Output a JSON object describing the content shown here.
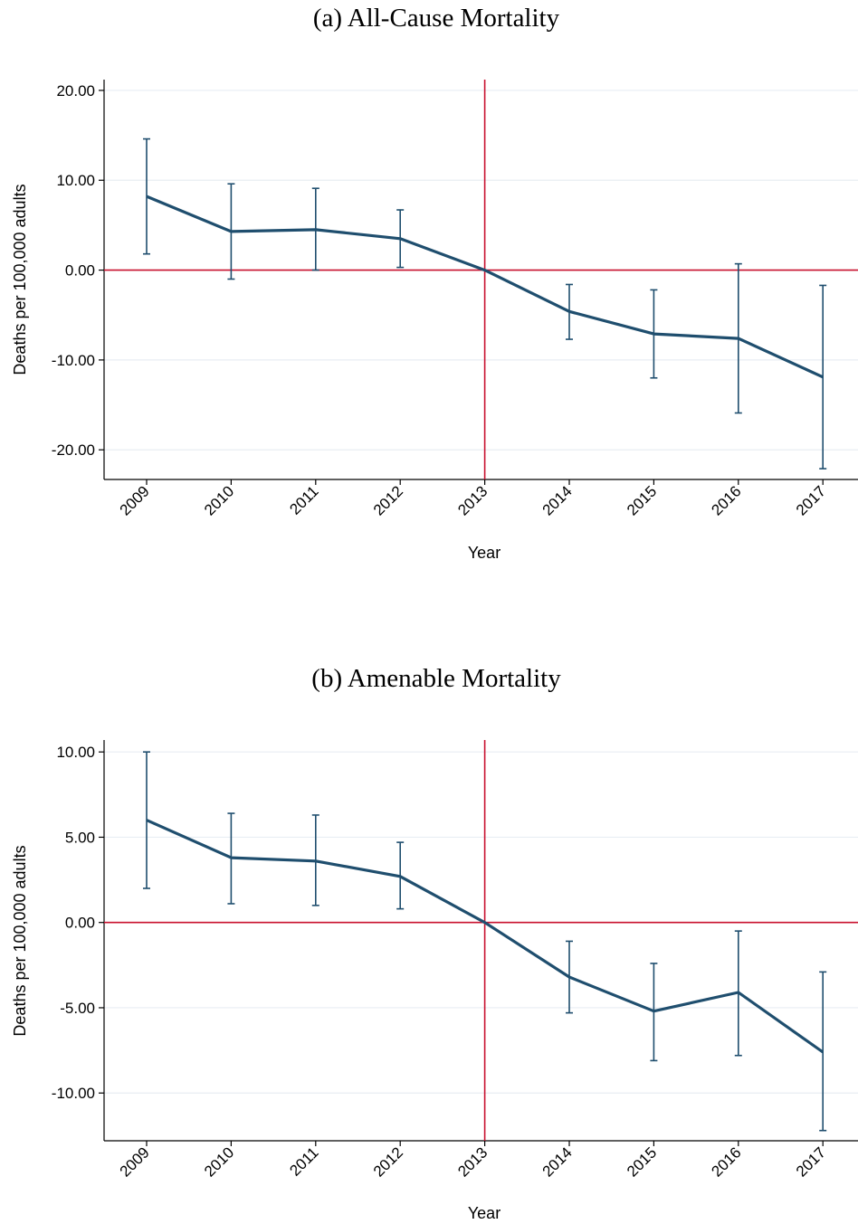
{
  "chart_data": [
    {
      "type": "line",
      "title": "(a) All-Cause Mortality",
      "xlabel": "Year",
      "ylabel": "Deaths per 100,000 adults",
      "x": [
        "2009",
        "2010",
        "2011",
        "2012",
        "2013",
        "2014",
        "2015",
        "2016",
        "2017"
      ],
      "yticks": [
        "20.00",
        "10.00",
        "0.00",
        "-10.00",
        "-20.00"
      ],
      "ytick_values": [
        20,
        10,
        0,
        -10,
        -20
      ],
      "ylim": [
        -23.3,
        21.2
      ],
      "series": [
        {
          "values": [
            8.2,
            4.3,
            4.5,
            3.5,
            0.0,
            -4.6,
            -7.1,
            -7.6,
            -11.9
          ],
          "ci_low": [
            1.8,
            -1.0,
            0.0,
            0.3,
            0.0,
            -7.7,
            -12.0,
            -15.9,
            -22.1
          ],
          "ci_high": [
            14.6,
            9.6,
            9.1,
            6.7,
            0.0,
            -1.6,
            -2.2,
            0.7,
            -1.7
          ]
        }
      ],
      "ref_x": "2013",
      "ref_y": 0,
      "grid": true,
      "colors": {
        "series": "#1f4e6e",
        "reference": "#c8102e",
        "grid": "#e8eef3"
      }
    },
    {
      "type": "line",
      "title": "(b) Amenable Mortality",
      "xlabel": "Year",
      "ylabel": "Deaths per 100,000 adults",
      "x": [
        "2009",
        "2010",
        "2011",
        "2012",
        "2013",
        "2014",
        "2015",
        "2016",
        "2017"
      ],
      "yticks": [
        "10.00",
        "5.00",
        "0.00",
        "-5.00",
        "-10.00"
      ],
      "ytick_values": [
        10,
        5,
        0,
        -5,
        -10
      ],
      "ylim": [
        -12.8,
        10.7
      ],
      "series": [
        {
          "values": [
            6.0,
            3.8,
            3.6,
            2.7,
            0.0,
            -3.2,
            -5.2,
            -4.1,
            -7.6
          ],
          "ci_low": [
            2.0,
            1.1,
            1.0,
            0.8,
            0.0,
            -5.3,
            -8.1,
            -7.8,
            -12.2
          ],
          "ci_high": [
            10.0,
            6.4,
            6.3,
            4.7,
            0.0,
            -1.1,
            -2.4,
            -0.5,
            -2.9
          ]
        }
      ],
      "ref_x": "2013",
      "ref_y": 0,
      "grid": true,
      "colors": {
        "series": "#1f4e6e",
        "reference": "#c8102e",
        "grid": "#e8eef3"
      }
    }
  ]
}
